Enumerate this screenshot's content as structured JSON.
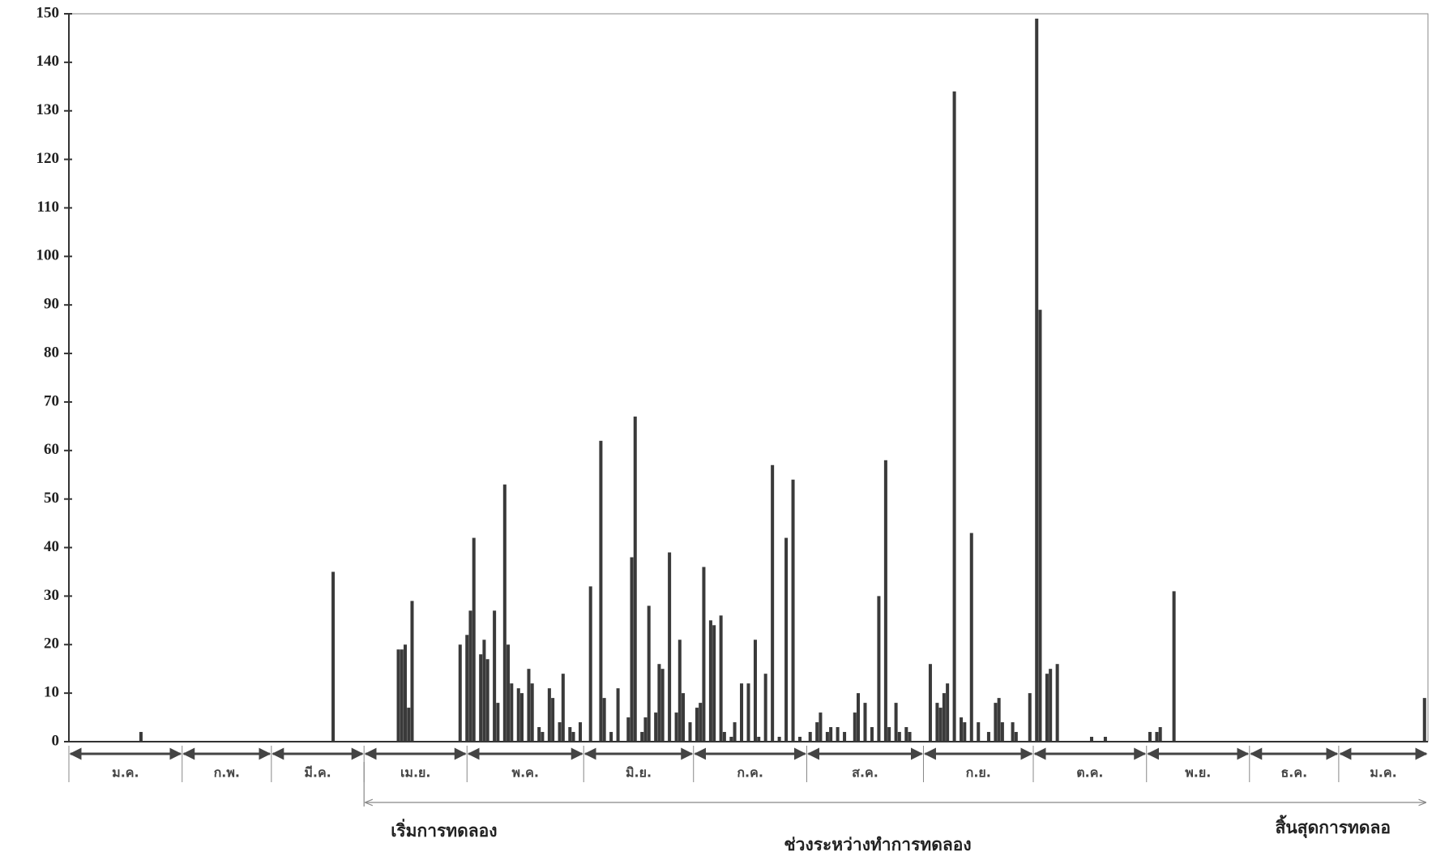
{
  "chart_data": {
    "type": "bar",
    "x": [
      21,
      77,
      96,
      97,
      98,
      99,
      100,
      114,
      116,
      117,
      118,
      120,
      121,
      122,
      124,
      125,
      127,
      128,
      129,
      131,
      132,
      134,
      135,
      137,
      138,
      140,
      141,
      143,
      144,
      146,
      147,
      149,
      152,
      155,
      156,
      158,
      160,
      163,
      164,
      165,
      167,
      168,
      169,
      171,
      172,
      173,
      175,
      177,
      178,
      179,
      181,
      183,
      184,
      185,
      187,
      188,
      190,
      191,
      193,
      194,
      196,
      198,
      200,
      201,
      203,
      205,
      207,
      209,
      211,
      213,
      216,
      218,
      219,
      221,
      222,
      224,
      226,
      229,
      230,
      232,
      234,
      236,
      238,
      239,
      241,
      242,
      244,
      245,
      251,
      253,
      254,
      255,
      256,
      258,
      260,
      261,
      263,
      265,
      268,
      270,
      271,
      272,
      275,
      276,
      280,
      282,
      283,
      285,
      286,
      288,
      298,
      302,
      315,
      317,
      318,
      322,
      395
    ],
    "values": [
      2,
      35,
      19,
      19,
      20,
      7,
      29,
      20,
      22,
      27,
      42,
      18,
      21,
      17,
      27,
      8,
      53,
      20,
      12,
      11,
      10,
      15,
      12,
      3,
      2,
      11,
      9,
      4,
      14,
      3,
      2,
      4,
      32,
      62,
      9,
      2,
      11,
      5,
      38,
      67,
      2,
      5,
      28,
      6,
      16,
      15,
      39,
      6,
      21,
      10,
      4,
      7,
      8,
      36,
      25,
      24,
      26,
      2,
      1,
      4,
      12,
      12,
      21,
      1,
      14,
      57,
      1,
      42,
      54,
      1,
      2,
      4,
      6,
      2,
      3,
      3,
      2,
      6,
      10,
      8,
      3,
      30,
      58,
      3,
      8,
      2,
      3,
      2,
      16,
      8,
      7,
      10,
      12,
      134,
      5,
      4,
      43,
      4,
      2,
      8,
      9,
      4,
      4,
      2,
      10,
      149,
      89,
      14,
      15,
      16,
      1,
      1,
      2,
      2,
      3,
      31,
      9
    ],
    "color": "#3a3a3a",
    "xlim": [
      0,
      396
    ],
    "ylim": [
      0,
      150
    ],
    "yticks": [
      0,
      10,
      20,
      30,
      40,
      50,
      60,
      70,
      80,
      90,
      100,
      110,
      120,
      130,
      140,
      150
    ],
    "months": [
      {
        "label": "ม.ค.",
        "start": 0,
        "end": 33
      },
      {
        "label": "ก.พ.",
        "start": 33,
        "end": 59
      },
      {
        "label": "มี.ค.",
        "start": 59,
        "end": 86
      },
      {
        "label": "เม.ย.",
        "start": 86,
        "end": 116
      },
      {
        "label": "พ.ค.",
        "start": 116,
        "end": 150
      },
      {
        "label": "มิ.ย.",
        "start": 150,
        "end": 182
      },
      {
        "label": "ก.ค.",
        "start": 182,
        "end": 215
      },
      {
        "label": "ส.ค.",
        "start": 215,
        "end": 249
      },
      {
        "label": "ก.ย.",
        "start": 249,
        "end": 281
      },
      {
        "label": "ต.ค.",
        "start": 281,
        "end": 314
      },
      {
        "label": "พ.ย.",
        "start": 314,
        "end": 344
      },
      {
        "label": "ธ.ค.",
        "start": 344,
        "end": 370
      },
      {
        "label": "ม.ค.",
        "start": 370,
        "end": 396
      }
    ],
    "experiment": {
      "start": 86,
      "end": 396,
      "label_start": "เริ่มการทดลอง",
      "label_middle": "ช่วงระหว่างทำการทดลอง",
      "label_end": "สิ้นสุดการทดลอ"
    }
  }
}
